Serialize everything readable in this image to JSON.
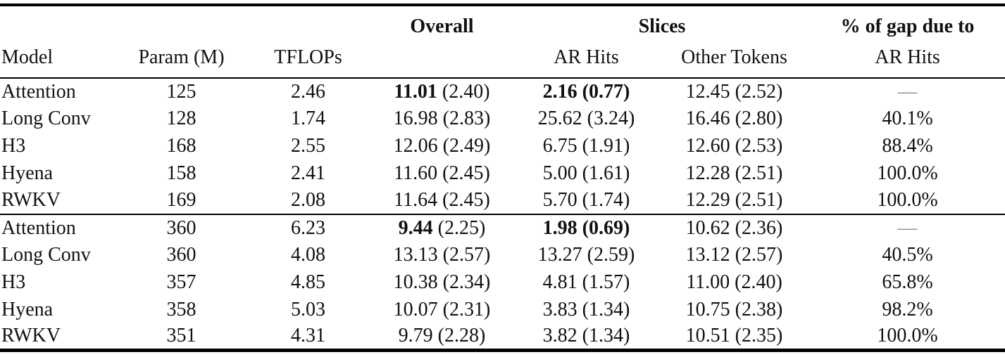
{
  "header": {
    "group": {
      "overall": "Overall",
      "slices": "Slices",
      "gap_line1": "% of gap due to"
    },
    "cols": {
      "model": "Model",
      "param": "Param (M)",
      "tflops": "TFLOPs",
      "ar_hits": "AR Hits",
      "other_tokens": "Other Tokens",
      "gap_line2": "AR Hits"
    }
  },
  "blocks": [
    {
      "rows": [
        {
          "model": "Attention",
          "param": "125",
          "tflops": "2.46",
          "overall_val": "11.01",
          "overall_paren": "(2.40)",
          "ar_hits": "2.16 (0.77)",
          "other_tokens": "12.45 (2.52)",
          "gap": "—"
        },
        {
          "model": "Long Conv",
          "param": "128",
          "tflops": "1.74",
          "overall_val": "16.98",
          "overall_paren": "(2.83)",
          "ar_hits": "25.62 (3.24)",
          "other_tokens": "16.46 (2.80)",
          "gap": "40.1%"
        },
        {
          "model": "H3",
          "param": "168",
          "tflops": "2.55",
          "overall_val": "12.06",
          "overall_paren": "(2.49)",
          "ar_hits": "6.75 (1.91)",
          "other_tokens": "12.60 (2.53)",
          "gap": "88.4%"
        },
        {
          "model": "Hyena",
          "param": "158",
          "tflops": "2.41",
          "overall_val": "11.60",
          "overall_paren": "(2.45)",
          "ar_hits": "5.00 (1.61)",
          "other_tokens": "12.28 (2.51)",
          "gap": "100.0%"
        },
        {
          "model": "RWKV",
          "param": "169",
          "tflops": "2.08",
          "overall_val": "11.64",
          "overall_paren": "(2.45)",
          "ar_hits": "5.70 (1.74)",
          "other_tokens": "12.29 (2.51)",
          "gap": "100.0%"
        }
      ]
    },
    {
      "rows": [
        {
          "model": "Attention",
          "param": "360",
          "tflops": "6.23",
          "overall_val": "9.44",
          "overall_paren": "(2.25)",
          "ar_hits": "1.98 (0.69)",
          "other_tokens": "10.62 (2.36)",
          "gap": "—"
        },
        {
          "model": "Long Conv",
          "param": "360",
          "tflops": "4.08",
          "overall_val": "13.13",
          "overall_paren": "(2.57)",
          "ar_hits": "13.27 (2.59)",
          "other_tokens": "13.12 (2.57)",
          "gap": "40.5%"
        },
        {
          "model": "H3",
          "param": "357",
          "tflops": "4.85",
          "overall_val": "10.38",
          "overall_paren": "(2.34)",
          "ar_hits": "4.81 (1.57)",
          "other_tokens": "11.00 (2.40)",
          "gap": "65.8%"
        },
        {
          "model": "Hyena",
          "param": "358",
          "tflops": "5.03",
          "overall_val": "10.07",
          "overall_paren": "(2.31)",
          "ar_hits": "3.83 (1.34)",
          "other_tokens": "10.75 (2.38)",
          "gap": "98.2%"
        },
        {
          "model": "RWKV",
          "param": "351",
          "tflops": "4.31",
          "overall_val": "9.79",
          "overall_paren": "(2.28)",
          "ar_hits": "3.82 (1.34)",
          "other_tokens": "10.51 (2.35)",
          "gap": "100.0%"
        }
      ]
    }
  ],
  "colors": {
    "text": "#111111",
    "rule": "#000000",
    "dash": "#8c8c8c",
    "background": "#ffffff"
  }
}
